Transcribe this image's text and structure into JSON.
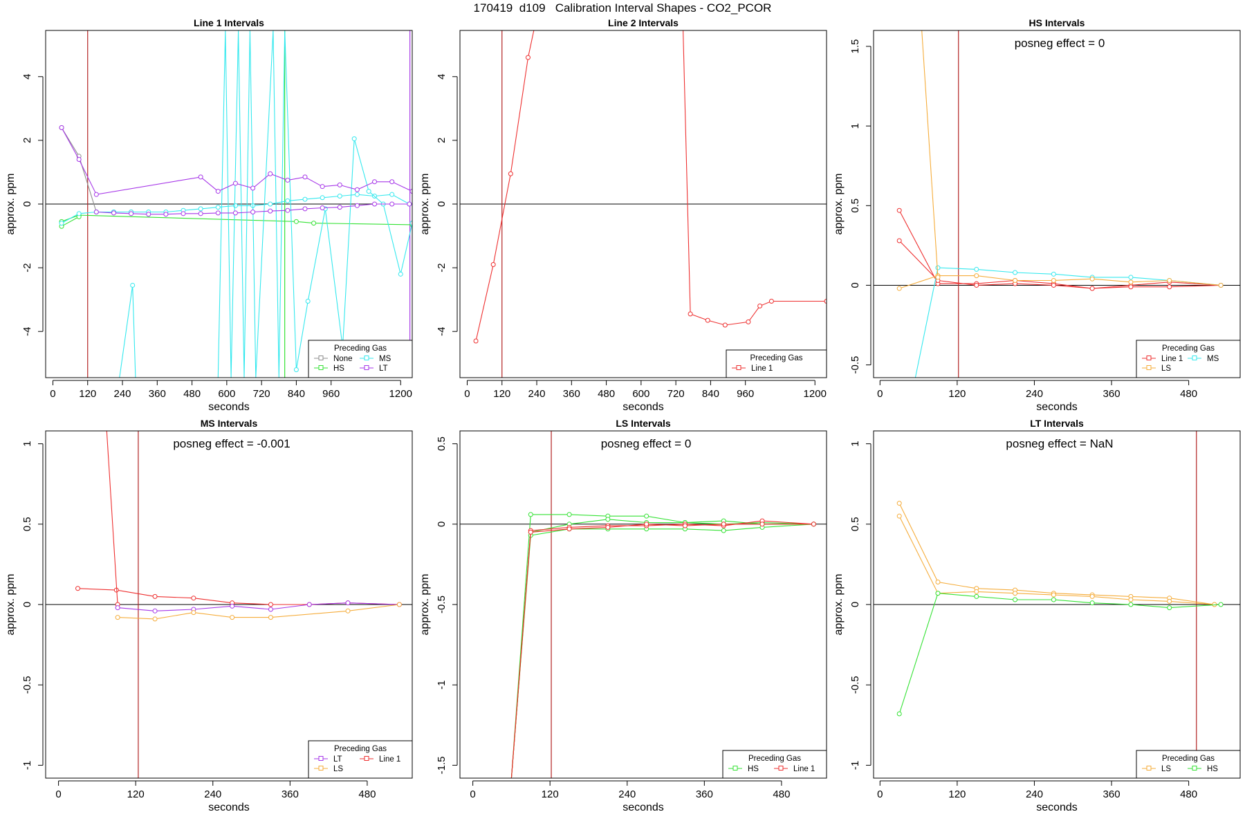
{
  "figure_title": "170419  d109   Calibration Interval Shapes - CO2_PCOR",
  "colors": {
    "None": "#8c8c8c",
    "MS": "#33e8ee",
    "HS": "#33e233",
    "LT": "#a636e8",
    "Line 1": "#ee2f2f",
    "LS": "#f5ac3a",
    "vline": "#b22222",
    "axis": "#000000"
  },
  "chart_data": [
    {
      "type": "line",
      "title": "Line 1 Intervals",
      "xlabel": "seconds",
      "ylabel": "approx. ppm",
      "xlim": [
        -25,
        1240
      ],
      "ylim": [
        -5.45,
        5.45
      ],
      "xticks": [
        0,
        120,
        240,
        360,
        480,
        600,
        720,
        840,
        960,
        1200
      ],
      "yticks": [
        -4,
        -2,
        0,
        2,
        4
      ],
      "vlines": [
        {
          "x": 120,
          "color": "#b22222"
        },
        {
          "x": 800,
          "color": "#33e233"
        },
        {
          "x": 1232,
          "color": "#a636e8"
        }
      ],
      "annotation": "",
      "legend": {
        "title": "Preceding Gas",
        "position": "bottom-right",
        "columns": 2,
        "entries": [
          "None",
          "MS",
          "HS",
          "LT"
        ]
      },
      "series": [
        {
          "name": "None",
          "x": [
            30,
            90,
            150,
            210,
            270
          ],
          "y": [
            2.4,
            1.5,
            -0.25,
            -0.25,
            -0.25
          ]
        },
        {
          "name": "HS",
          "x": [
            30,
            90,
            840,
            900,
            1240
          ],
          "y": [
            -0.55,
            -0.35,
            -0.55,
            -0.6,
            -0.65
          ]
        },
        {
          "name": "HS",
          "x": [
            30,
            90
          ],
          "y": [
            -0.7,
            -0.4
          ]
        },
        {
          "name": "MS",
          "x": [
            30,
            90,
            150,
            210,
            270,
            330,
            390,
            450,
            510,
            570,
            630,
            690,
            750,
            810,
            870,
            930,
            990,
            1050,
            1110,
            1170,
            1230
          ],
          "y": [
            -0.6,
            -0.3,
            -0.25,
            -0.25,
            -0.25,
            -0.25,
            -0.25,
            -0.2,
            -0.15,
            -0.1,
            -0.05,
            -0.05,
            0.0,
            0.1,
            0.15,
            0.2,
            0.25,
            0.3,
            0.25,
            0.3,
            0.0
          ]
        },
        {
          "name": "MS",
          "x": [
            230,
            275,
            285,
            570,
            595,
            615,
            640,
            660,
            680,
            700,
            760,
            780,
            800,
            840,
            880,
            940,
            1000,
            1040,
            1090,
            1140,
            1200,
            1240
          ],
          "y": [
            -5.45,
            -2.55,
            -5.45,
            -5.45,
            5.45,
            -5.45,
            5.45,
            -5.45,
            5.45,
            -5.45,
            5.45,
            -5.45,
            5.45,
            -5.2,
            -3.05,
            -0.15,
            -4.5,
            2.05,
            0.4,
            0.0,
            -2.2,
            -0.6
          ]
        },
        {
          "name": "LT",
          "x": [
            30,
            90,
            150,
            510,
            570,
            630,
            690,
            750,
            810,
            870,
            930,
            990,
            1050,
            1110,
            1170,
            1240
          ],
          "y": [
            2.4,
            1.4,
            0.3,
            0.85,
            0.4,
            0.65,
            0.5,
            0.95,
            0.75,
            0.85,
            0.55,
            0.6,
            0.45,
            0.7,
            0.7,
            0.4
          ]
        },
        {
          "name": "LT",
          "x": [
            150,
            210,
            270,
            330,
            390,
            450,
            510,
            570,
            630,
            690,
            750,
            810,
            870,
            930,
            990,
            1050,
            1110,
            1170,
            1230
          ],
          "y": [
            -0.25,
            -0.28,
            -0.3,
            -0.32,
            -0.32,
            -0.3,
            -0.3,
            -0.28,
            -0.28,
            -0.25,
            -0.22,
            -0.2,
            -0.15,
            -0.12,
            -0.1,
            -0.05,
            0.0,
            0.0,
            0.0
          ]
        }
      ]
    },
    {
      "type": "line",
      "title": "Line 2 Intervals",
      "xlabel": "seconds",
      "ylabel": "approx. ppm",
      "xlim": [
        -25,
        1240
      ],
      "ylim": [
        -5.45,
        5.45
      ],
      "xticks": [
        0,
        120,
        240,
        360,
        480,
        600,
        720,
        840,
        960,
        1200
      ],
      "yticks": [
        -4,
        -2,
        0,
        2,
        4
      ],
      "vlines": [
        {
          "x": 120,
          "color": "#b22222"
        }
      ],
      "annotation": "",
      "legend": {
        "title": "Preceding Gas",
        "position": "bottom-right",
        "columns": 1,
        "entries": [
          "Line 1"
        ]
      },
      "series": [
        {
          "name": "Line 1",
          "x": [
            30,
            90,
            150,
            210,
            230
          ],
          "y": [
            -4.3,
            -1.9,
            0.95,
            4.6,
            5.45
          ]
        },
        {
          "name": "Line 1",
          "x": [
            745,
            770,
            830,
            890,
            970,
            1010,
            1050,
            1240
          ],
          "y": [
            5.45,
            -3.45,
            -3.65,
            -3.8,
            -3.7,
            -3.2,
            -3.05,
            -3.05
          ]
        }
      ]
    },
    {
      "type": "line",
      "title": "HS Intervals",
      "xlabel": "seconds",
      "ylabel": "approx. ppm",
      "xlim": [
        -10,
        560
      ],
      "ylim": [
        -0.58,
        1.6
      ],
      "xticks": [
        0,
        120,
        240,
        360,
        480
      ],
      "yticks": [
        -0.5,
        0.0,
        0.5,
        1.0,
        1.5
      ],
      "vlines": [
        {
          "x": 122,
          "color": "#b22222"
        }
      ],
      "annotation": "posneg effect = 0",
      "legend": {
        "title": "Preceding Gas",
        "position": "bottom-right",
        "columns": 2,
        "entries": [
          "Line 1",
          "MS",
          "LS"
        ]
      },
      "series": [
        {
          "name": "Line 1",
          "x": [
            30,
            90,
            150,
            210,
            270,
            330,
            390,
            450,
            530
          ],
          "y": [
            0.47,
            0.01,
            0.01,
            0.03,
            0.01,
            -0.02,
            0.0,
            0.02,
            0.0
          ]
        },
        {
          "name": "Line 1",
          "x": [
            30,
            90,
            150,
            210,
            270,
            330,
            390,
            450,
            530
          ],
          "y": [
            0.28,
            0.03,
            0.0,
            0.01,
            0.0,
            -0.02,
            -0.01,
            -0.01,
            0.0
          ]
        },
        {
          "name": "MS",
          "x": [
            55,
            90,
            150,
            210,
            270,
            330,
            390,
            450,
            530
          ],
          "y": [
            -0.58,
            0.11,
            0.1,
            0.08,
            0.07,
            0.05,
            0.05,
            0.03,
            0.0
          ]
        },
        {
          "name": "LS",
          "x": [
            30,
            90,
            150,
            210,
            270,
            330,
            390,
            450,
            530
          ],
          "y": [
            -0.02,
            0.06,
            0.06,
            0.03,
            0.03,
            0.04,
            0.02,
            0.03,
            0.0
          ]
        },
        {
          "name": "LS",
          "x": [
            65,
            90
          ],
          "y": [
            1.6,
            0.05
          ]
        }
      ]
    },
    {
      "type": "line",
      "title": "MS Intervals",
      "xlabel": "seconds",
      "ylabel": "approx. ppm",
      "xlim": [
        -20,
        550
      ],
      "ylim": [
        -1.08,
        1.08
      ],
      "xticks": [
        0,
        120,
        240,
        360,
        480
      ],
      "yticks": [
        -1.0,
        -0.5,
        0.0,
        0.5,
        1.0
      ],
      "vlines": [
        {
          "x": 124,
          "color": "#b22222"
        }
      ],
      "annotation": "posneg effect = -0.001",
      "legend": {
        "title": "Preceding Gas",
        "position": "bottom-right",
        "columns": 2,
        "entries": [
          "LT",
          "Line 1",
          "LS"
        ]
      },
      "series": [
        {
          "name": "Line 1",
          "x": [
            30,
            90,
            150,
            210,
            270,
            330,
            390,
            450,
            530
          ],
          "y": [
            0.1,
            0.09,
            0.05,
            0.04,
            0.01,
            0.0,
            0.0,
            0.01,
            0.0
          ]
        },
        {
          "name": "Line 1",
          "x": [
            75,
            92
          ],
          "y": [
            1.08,
            0.0
          ]
        },
        {
          "name": "LT",
          "x": [
            92,
            150,
            210,
            270,
            330,
            390,
            450,
            530
          ],
          "y": [
            -0.02,
            -0.04,
            -0.03,
            -0.01,
            -0.03,
            0.0,
            0.01,
            0.0
          ]
        },
        {
          "name": "LS",
          "x": [
            92,
            150,
            210,
            270,
            330,
            450,
            530
          ],
          "y": [
            -0.08,
            -0.09,
            -0.05,
            -0.08,
            -0.08,
            -0.04,
            0.0
          ]
        }
      ]
    },
    {
      "type": "line",
      "title": "LS Intervals",
      "xlabel": "seconds",
      "ylabel": "approx. ppm",
      "xlim": [
        -20,
        550
      ],
      "ylim": [
        -1.58,
        0.58
      ],
      "xticks": [
        0,
        120,
        240,
        360,
        480
      ],
      "yticks": [
        -1.5,
        -1.0,
        -0.5,
        0.0,
        0.5
      ],
      "vlines": [
        {
          "x": 122,
          "color": "#b22222"
        }
      ],
      "annotation": "posneg effect = 0",
      "legend": {
        "title": "Preceding Gas",
        "position": "bottom-right",
        "columns": 2,
        "entries": [
          "HS",
          "Line 1"
        ]
      },
      "series": [
        {
          "name": "HS",
          "x": [
            60,
            90,
            150,
            210,
            270,
            330,
            390,
            450,
            530
          ],
          "y": [
            -1.58,
            0.06,
            0.06,
            0.05,
            0.05,
            0.01,
            0.02,
            0.0,
            0.0
          ]
        },
        {
          "name": "HS",
          "x": [
            60,
            90,
            150,
            210,
            270,
            330,
            390,
            450,
            530
          ],
          "y": [
            -1.58,
            -0.07,
            -0.03,
            -0.03,
            -0.03,
            -0.03,
            -0.04,
            -0.02,
            0.0
          ]
        },
        {
          "name": "HS",
          "x": [
            60,
            90,
            150,
            210,
            270,
            330,
            390,
            450,
            530
          ],
          "y": [
            -1.58,
            -0.05,
            0.0,
            0.03,
            0.01,
            0.01,
            0.0,
            0.01,
            0.0
          ]
        },
        {
          "name": "Line 1",
          "x": [
            60,
            90,
            150,
            210,
            270,
            330,
            390,
            450,
            530
          ],
          "y": [
            -1.58,
            -0.04,
            -0.02,
            -0.01,
            -0.01,
            0.0,
            -0.01,
            0.02,
            0.0
          ]
        },
        {
          "name": "Line 1",
          "x": [
            60,
            90,
            150,
            210,
            270,
            330,
            390,
            450,
            530
          ],
          "y": [
            -1.58,
            -0.05,
            -0.03,
            -0.02,
            0.0,
            -0.01,
            0.0,
            0.0,
            0.0
          ]
        }
      ]
    },
    {
      "type": "line",
      "title": "LT Intervals",
      "xlabel": "seconds",
      "ylabel": "approx. ppm",
      "xlim": [
        -10,
        560
      ],
      "ylim": [
        -1.08,
        1.08
      ],
      "xticks": [
        0,
        120,
        240,
        360,
        480
      ],
      "yticks": [
        -1.0,
        -0.5,
        0.0,
        0.5,
        1.0
      ],
      "vlines": [
        {
          "x": 492,
          "color": "#b22222"
        }
      ],
      "annotation": "posneg effect = NaN",
      "legend": {
        "title": "Preceding Gas",
        "position": "bottom-right",
        "columns": 2,
        "entries": [
          "LS",
          "HS"
        ]
      },
      "series": [
        {
          "name": "LS",
          "x": [
            30,
            90,
            150,
            210,
            270,
            330,
            390,
            450,
            520
          ],
          "y": [
            0.63,
            0.14,
            0.1,
            0.09,
            0.07,
            0.06,
            0.05,
            0.04,
            0.0
          ]
        },
        {
          "name": "LS",
          "x": [
            30,
            90,
            150,
            210,
            270,
            330,
            390,
            450,
            520
          ],
          "y": [
            0.55,
            0.07,
            0.08,
            0.07,
            0.06,
            0.05,
            0.03,
            0.02,
            0.0
          ]
        },
        {
          "name": "HS",
          "x": [
            30,
            90,
            150,
            210,
            270,
            330,
            390,
            450,
            530
          ],
          "y": [
            -0.68,
            0.07,
            0.05,
            0.03,
            0.03,
            0.01,
            0.0,
            -0.02,
            0.0
          ]
        }
      ]
    }
  ]
}
